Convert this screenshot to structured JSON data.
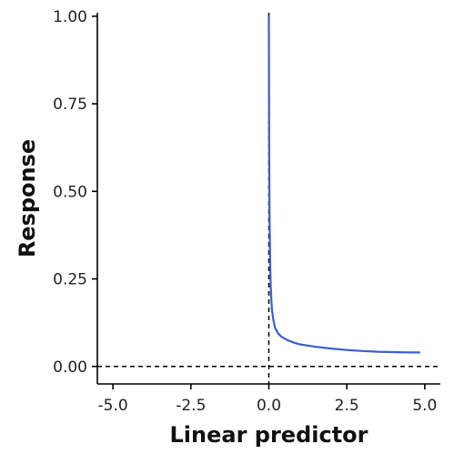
{
  "chart_data": {
    "type": "line",
    "title": "",
    "xlabel": "Linear predictor",
    "ylabel": "Response",
    "xlim": [
      -5.5,
      5.5
    ],
    "ylim": [
      -0.05,
      1.01
    ],
    "x_ticks": [
      -5.0,
      -2.5,
      0.0,
      2.5,
      5.0
    ],
    "x_tick_labels": [
      "-5.0",
      "-2.5",
      "0.0",
      "2.5",
      "5.0"
    ],
    "y_ticks": [
      0.0,
      0.25,
      0.5,
      0.75,
      1.0
    ],
    "y_tick_labels": [
      "0.00",
      "0.25",
      "0.50",
      "0.75",
      "1.00"
    ],
    "grid": false,
    "reference_lines": {
      "vertical_x": 0.0,
      "horizontal_y": 0.0,
      "style": "dashed"
    },
    "series": [
      {
        "color": "#3a5fcd",
        "x": [
          0.0,
          0.01,
          0.02,
          0.04,
          0.06,
          0.08,
          0.1,
          0.15,
          0.2,
          0.3,
          0.4,
          0.6,
          0.8,
          1.0,
          1.5,
          2.0,
          2.5,
          3.0,
          3.5,
          4.0,
          4.5,
          4.85
        ],
        "y": [
          1.0,
          0.62,
          0.44,
          0.3,
          0.23,
          0.19,
          0.16,
          0.13,
          0.11,
          0.094,
          0.085,
          0.075,
          0.068,
          0.063,
          0.056,
          0.051,
          0.047,
          0.044,
          0.042,
          0.041,
          0.04,
          0.04
        ]
      }
    ]
  }
}
